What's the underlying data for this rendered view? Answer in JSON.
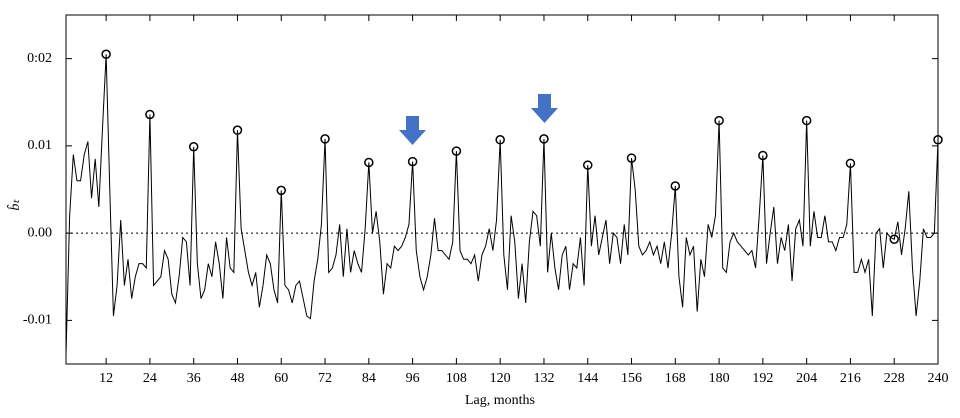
{
  "chart_data": {
    "type": "line",
    "xlabel": "Lag, months",
    "ylabel": "b̂ₜ",
    "x": [
      1,
      2,
      3,
      4,
      5,
      6,
      7,
      8,
      9,
      10,
      11,
      12,
      13,
      14,
      15,
      16,
      17,
      18,
      19,
      20,
      21,
      22,
      23,
      24,
      25,
      26,
      27,
      28,
      29,
      30,
      31,
      32,
      33,
      34,
      35,
      36,
      37,
      38,
      39,
      40,
      41,
      42,
      43,
      44,
      45,
      46,
      47,
      48,
      49,
      50,
      51,
      52,
      53,
      54,
      55,
      56,
      57,
      58,
      59,
      60,
      61,
      62,
      63,
      64,
      65,
      66,
      67,
      68,
      69,
      70,
      71,
      72,
      73,
      74,
      75,
      76,
      77,
      78,
      79,
      80,
      81,
      82,
      83,
      84,
      85,
      86,
      87,
      88,
      89,
      90,
      91,
      92,
      93,
      94,
      95,
      96,
      97,
      98,
      99,
      100,
      101,
      102,
      103,
      104,
      105,
      106,
      107,
      108,
      109,
      110,
      111,
      112,
      113,
      114,
      115,
      116,
      117,
      118,
      119,
      120,
      121,
      122,
      123,
      124,
      125,
      126,
      127,
      128,
      129,
      130,
      131,
      132,
      133,
      134,
      135,
      136,
      137,
      138,
      139,
      140,
      141,
      142,
      143,
      144,
      145,
      146,
      147,
      148,
      149,
      150,
      151,
      152,
      153,
      154,
      155,
      156,
      157,
      158,
      159,
      160,
      161,
      162,
      163,
      164,
      165,
      166,
      167,
      168,
      169,
      170,
      171,
      172,
      173,
      174,
      175,
      176,
      177,
      178,
      179,
      180,
      181,
      182,
      183,
      184,
      185,
      186,
      187,
      188,
      189,
      190,
      191,
      192,
      193,
      194,
      195,
      196,
      197,
      198,
      199,
      200,
      201,
      202,
      203,
      204,
      205,
      206,
      207,
      208,
      209,
      210,
      211,
      212,
      213,
      214,
      215,
      216,
      217,
      218,
      219,
      220,
      221,
      222,
      223,
      224,
      225,
      226,
      227,
      228,
      229,
      230,
      231,
      232,
      233,
      234,
      235,
      236,
      237,
      238,
      239,
      240
    ],
    "series": [
      {
        "color": "#000000",
        "values": [
          -0.014,
          0.002,
          0.009,
          0.006,
          0.006,
          0.009,
          0.0105,
          0.004,
          0.0085,
          0.003,
          0.012,
          0.0205,
          0.005,
          -0.0095,
          -0.006,
          0.0015,
          -0.006,
          -0.003,
          -0.0075,
          -0.005,
          -0.0035,
          -0.0035,
          -0.004,
          0.0136,
          -0.006,
          -0.0055,
          -0.005,
          -0.002,
          -0.003,
          -0.007,
          -0.008,
          -0.005,
          -0.0005,
          -0.001,
          -0.006,
          0.0099,
          -0.0035,
          -0.0075,
          -0.0065,
          -0.0035,
          -0.005,
          -0.001,
          -0.0035,
          -0.0075,
          -0.0005,
          -0.004,
          -0.0045,
          0.0118,
          0.0005,
          -0.002,
          -0.0045,
          -0.006,
          -0.0045,
          -0.0085,
          -0.006,
          -0.0025,
          -0.0035,
          -0.0065,
          -0.008,
          0.0049,
          -0.006,
          -0.0065,
          -0.008,
          -0.006,
          -0.0055,
          -0.0075,
          -0.0095,
          -0.0098,
          -0.0055,
          -0.003,
          0.001,
          0.0108,
          -0.0045,
          -0.004,
          -0.0025,
          0.001,
          -0.005,
          0.0005,
          -0.0045,
          -0.002,
          -0.0035,
          -0.0045,
          0.0005,
          0.0081,
          0.0,
          0.0025,
          -0.001,
          -0.007,
          -0.0035,
          -0.004,
          -0.0015,
          -0.002,
          -0.0015,
          -0.0005,
          0.001,
          0.0082,
          -0.002,
          -0.005,
          -0.0065,
          -0.005,
          -0.0025,
          0.0017,
          -0.002,
          -0.002,
          -0.0025,
          -0.003,
          -0.001,
          0.0094,
          -0.002,
          -0.003,
          -0.003,
          -0.0035,
          -0.0025,
          -0.0055,
          -0.0025,
          -0.0015,
          0.0005,
          -0.002,
          0.0015,
          0.0107,
          -0.0025,
          -0.0065,
          0.002,
          -0.001,
          -0.0075,
          -0.0035,
          -0.008,
          -0.001,
          0.0025,
          0.002,
          -0.0015,
          0.0108,
          -0.0045,
          0.0,
          -0.004,
          -0.0065,
          -0.0025,
          -0.0015,
          -0.0065,
          -0.0035,
          -0.004,
          -0.0005,
          -0.006,
          0.0078,
          -0.0015,
          0.002,
          -0.0025,
          -0.0005,
          0.0015,
          -0.0035,
          0.0,
          -0.0005,
          -0.0035,
          0.001,
          -0.0025,
          0.0086,
          0.005,
          -0.0015,
          -0.0025,
          -0.002,
          -0.001,
          -0.0025,
          -0.0015,
          -0.0035,
          -0.001,
          -0.004,
          0.0,
          0.0054,
          -0.005,
          -0.0085,
          -0.0005,
          -0.0025,
          -0.0015,
          -0.009,
          -0.003,
          -0.005,
          0.001,
          -0.0005,
          0.002,
          0.0129,
          -0.004,
          -0.0045,
          -0.001,
          0.0,
          -0.001,
          -0.0015,
          -0.002,
          -0.0025,
          -0.002,
          -0.004,
          0.002,
          0.0089,
          -0.0035,
          0.0,
          0.003,
          -0.0035,
          -0.0005,
          -0.002,
          0.001,
          -0.0055,
          0.0005,
          0.0015,
          -0.0015,
          0.0129,
          -0.0015,
          0.0025,
          -0.0005,
          -0.0005,
          0.002,
          -0.001,
          -0.001,
          -0.002,
          -0.0005,
          -0.0005,
          0.001,
          0.008,
          -0.0045,
          -0.0045,
          -0.003,
          -0.0045,
          -0.003,
          -0.0095,
          0.0,
          0.0005,
          -0.004,
          0.0,
          -0.0005,
          -0.0007,
          0.0013,
          -0.0025,
          0.0005,
          0.0048,
          -0.004,
          -0.0095,
          -0.0055,
          0.0005,
          -0.0005,
          -0.0005,
          0.0,
          0.0107
        ]
      }
    ],
    "marked_x": [
      12,
      24,
      36,
      48,
      60,
      72,
      84,
      96,
      108,
      120,
      132,
      144,
      156,
      168,
      180,
      192,
      204,
      216,
      228,
      240
    ],
    "reference_line": 0,
    "xlim": [
      1,
      240
    ],
    "ylim": [
      -0.015,
      0.025
    ],
    "xticks": [
      12,
      24,
      36,
      48,
      60,
      72,
      84,
      96,
      108,
      120,
      132,
      144,
      156,
      168,
      180,
      192,
      204,
      216,
      228,
      240
    ],
    "yticks": [
      -0.01,
      {
        "value": 0,
        "label": "0.00"
      },
      0.01,
      {
        "value": 0.02,
        "label": "0:02"
      }
    ]
  }
}
